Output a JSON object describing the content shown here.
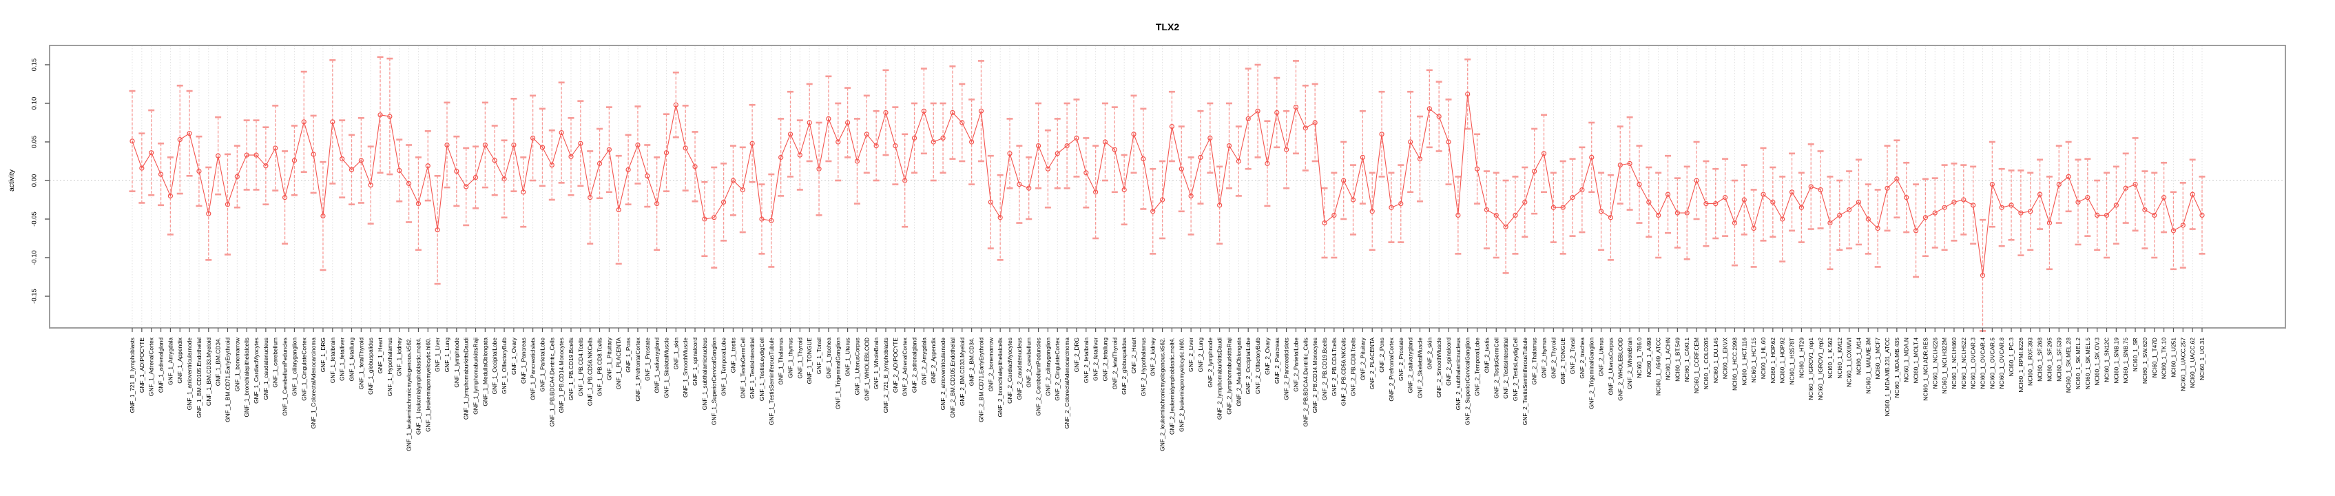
{
  "chart_data": {
    "type": "line",
    "title": "TLX2",
    "ylabel": "activity",
    "xlabel": "",
    "ylim": [
      -0.191,
      0.175
    ],
    "yticks": [
      0.15,
      0.1,
      0.05,
      0.0,
      -0.05,
      -0.1,
      -0.15
    ],
    "ytick_labels": [
      "0.15",
      "0.10",
      "0.05",
      "0.00",
      "-0.05",
      "-0.10",
      "-0.15"
    ],
    "grid": true,
    "zero_line": true,
    "legend": "none",
    "colors": {
      "line": "#f4544e",
      "marker": "#f4544e",
      "error": "#f79a96",
      "grid": "#dedede",
      "zero": "#c8c8c8",
      "box": "#9e9e9e",
      "axis": "#555555",
      "text": "#000000"
    },
    "categories": [
      "GNF_1_721_B_lymphoblasts",
      "GNF_1_ADIPOCYTE",
      "GNF_1_AdrenalCortex",
      "GNF_1_adrenalgland",
      "GNF_1_Amygdala",
      "GNF_1_Appendix",
      "GNF_1_atrioventricularnode",
      "GNF_1_BM.CD105.Endothelial",
      "GNF_1_BM.CD33.Myeloid",
      "GNF_1_BM.CD34.",
      "GNF_1_BM.CD71.EarlyErythroid",
      "GNF_1_bonemarrow",
      "GNF_1_bronchialepithelialcells",
      "GNF_1_CardiacMyocytes",
      "GNF_1_caudatenucleus",
      "GNF_1_cerebellum",
      "GNF_1_CerebellumPeduncles",
      "GNF_1_ciliaryganglion",
      "GNF_1_CingulateCortex",
      "GNF_1_ColorectalAdenocarcinoma",
      "GNF_1_DRG",
      "GNF_1_fetalbrain",
      "GNF_1_fetalliver",
      "GNF_1_fetallung",
      "GNF_1_fetalThyroid",
      "GNF_1_globuspalidus",
      "GNF_1_Heart",
      "GNF_1_Hypothalamus",
      "GNF_1_kidney",
      "GNF_1_leukemiachronicmyelogenous.k562.",
      "GNF_1_leukemialymphoblastic.molt4.",
      "GNF_1_leukemiapromyelocytic.hl60.",
      "GNF_1_Liver",
      "GNF_1_Lung",
      "GNF_1_lymphnode",
      "GNF_1_lymphomaburkittsDaudi",
      "GNF_1_lymphomaburkittsRaji",
      "GNF_1_MedullaOblongata",
      "GNF_1_OccipitalLobe",
      "GNF_1_OlfactoryBulb",
      "GNF_1_Ovary",
      "GNF_1_Pancreas",
      "GNF_1_PancreaticIslets",
      "GNF_1_ParietalLobe",
      "GNF_1_PB.BDCA4.Dentritic_Cells",
      "GNF_1_PB.CD14.Monocytes",
      "GNF_1_PB.CD19.Bcells",
      "GNF_1_PB.CD4.Tcells",
      "GNF_1_PB.CD56.NKCells",
      "GNF_1_PB.CD8.Tcells",
      "GNF_1_Pituitary",
      "GNF_1_PLACENTA",
      "GNF_1_Pons",
      "GNF_1_PrefrontalCortex",
      "GNF_1_Prostate",
      "GNF_1_salivarygland",
      "GNF_1_SkeletalMuscle",
      "GNF_1_skin",
      "GNF_1_SmoothMuscle",
      "GNF_1_spinalcord",
      "GNF_1_subthalamicnucleus",
      "GNF_1_SuperiorCervicalGanglion",
      "GNF_1_TemporalLobe",
      "GNF_1_testis",
      "GNF_1_TestisGermCell",
      "GNF_1_TestisInterstitial",
      "GNF_1_TestisLeydigCell",
      "GNF_1_TestisSeminiferousTubule",
      "GNF_1_Thalamus",
      "GNF_1_thymus",
      "GNF_1_Thyroid",
      "GNF_1_TONGUE",
      "GNF_1_Tonsil",
      "GNF_1_trachea",
      "GNF_1_TrigeminalGanglion",
      "GNF_1_Uterus",
      "GNF_1_UterusCorpus",
      "GNF_1_WHOLEBLOOD",
      "GNF_1_WholeBrain",
      "GNF_2_721_B_lymphoblasts",
      "GNF_2_ADIPOCYTE",
      "GNF_2_AdrenalCortex",
      "GNF_2_adrenalgland",
      "GNF_2_Amygdala",
      "GNF_2_Appendix",
      "GNF_2_atrioventricularnode",
      "GNF_2_BM.CD105.Endothelial",
      "GNF_2_BM.CD33.Myeloid",
      "GNF_2_BM.CD34.",
      "GNF_2_BM.CD71.EarlyErythroid",
      "GNF_2_bonemarrow",
      "GNF_2_bronchialepithelialcells",
      "GNF_2_CardiacMyocytes",
      "GNF_2_caudatenucleus",
      "GNF_2_cerebellum",
      "GNF_2_CerebellumPeduncles",
      "GNF_2_ciliaryganglion",
      "GNF_2_CingulateCortex",
      "GNF_2_ColorectalAdenocarcinoma",
      "GNF_2_DRG",
      "GNF_2_fetalbrain",
      "GNF_2_fetalliver",
      "GNF_2_fetallung",
      "GNF_2_fetalThyroid",
      "GNF_2_globuspalidus",
      "GNF_2_Heart",
      "GNF_2_Hypothalamus",
      "GNF_2_kidney",
      "GNF_2_leukemiachronicmyelogenous.k562.",
      "GNF_2_leukemialymphoblastic.molt4.",
      "GNF_2_leukemiapromyelocytic.hl60.",
      "GNF_2_Liver",
      "GNF_2_Lung",
      "GNF_2_lymphnode",
      "GNF_2_lymphomaburkittsDaudi",
      "GNF_2_lymphomaburkittsRaji",
      "GNF_2_MedullaOblongata",
      "GNF_2_OccipitalLobe",
      "GNF_2_OlfactoryBulb",
      "GNF_2_Ovary",
      "GNF_2_Pancreas",
      "GNF_2_PancreaticIslets",
      "GNF_2_ParietalLobe",
      "GNF_2_PB.BDCA4.Dentritic_Cells",
      "GNF_2_PB.CD14.Monocytes",
      "GNF_2_PB.CD19.Bcells",
      "GNF_2_PB.CD4.Tcells",
      "GNF_2_PB.CD56.NKCells",
      "GNF_2_PB.CD8.Tcells",
      "GNF_2_Pituitary",
      "GNF_2_PLACENTA",
      "GNF_2_Pons",
      "GNF_2_PrefrontalCortex",
      "GNF_2_Prostate",
      "GNF_2_salivarygland",
      "GNF_2_SkeletalMuscle",
      "GNF_2_skin",
      "GNF_2_SmoothMuscle",
      "GNF_2_spinalcord",
      "GNF_2_subthalamicnucleus",
      "GNF_2_SuperiorCervicalGanglion",
      "GNF_2_TemporalLobe",
      "GNF_2_testis",
      "GNF_2_TestisGermCell",
      "GNF_2_TestisInterstitial",
      "GNF_2_TestisLeydigCell",
      "GNF_2_TestisSeminiferousTubule",
      "GNF_2_Thalamus",
      "GNF_2_thymus",
      "GNF_2_Thyroid",
      "GNF_2_TONGUE",
      "GNF_2_Tonsil",
      "GNF_2_trachea",
      "GNF_2_TrigeminalGanglion",
      "GNF_2_Uterus",
      "GNF_2_UterusCorpus",
      "GNF_2_WHOLEBLOOD",
      "GNF_2_WholeBrain",
      "NCI60_1_786.0",
      "NCI60_1_A498",
      "NCI60_1_A549_ATCC",
      "NCI60_1_ACHN",
      "NCI60_1_BT.549",
      "NCI60_1_CAKI.1",
      "NCI60_1_CCRF.CEM",
      "NCI60_1_COLO205",
      "NCI60_1_DU.145",
      "NCI60_1_EKVX",
      "NCI60_1_HCC.2998",
      "NCI60_1_HCT.116",
      "NCI60_1_HCT.15",
      "NCI60_1_HL.60",
      "NCI60_1_HOP.62",
      "NCI60_1_HOP.92",
      "NCI60_1_HS578T",
      "NCI60_1_HT29",
      "NCI60_1_IGROV1_rep1",
      "NCI60_1_IGROV1_rep2",
      "NCI60_1_K.562",
      "NCI60_1_KM12",
      "NCI60_1_LOXIMVI",
      "NCI60_1_M14",
      "NCI60_1_MALME.3M",
      "NCI60_1_MCF7",
      "NCI60_1_MDA.MB.231_ATCC",
      "NCI60_1_MDA.MB.435",
      "NCI60_1_MDA.N",
      "NCI60_1_MOLT.4",
      "NCI60_1_NCI.ADR.RES",
      "NCI60_1_NCI.H226",
      "NCI60_1_NCI.H322M",
      "NCI60_1_NCI.H460",
      "NCI60_1_NCI.H522",
      "NCI60_1_OVCAR.3",
      "NCI60_1_OVCAR.4",
      "NCI60_1_OVCAR.5",
      "NCI60_1_OVCAR.8",
      "NCI60_1_PC.3",
      "NCI60_1_RPMI.8226",
      "NCI60_1_RXF.393",
      "NCI60_1_SF.268",
      "NCI60_1_SF.295",
      "NCI60_1_SF.539",
      "NCI60_1_SK.MEL.28",
      "NCI60_1_SK.MEL.2",
      "NCI60_1_SK.MEL.5",
      "NCI60_1_SK.OV.3",
      "NCI60_1_SN12C",
      "NCI60_1_SNB.19",
      "NCI60_1_SNB.75",
      "NCI60_1_SR",
      "NCI60_1_SW.620",
      "NCI60_1_T47D",
      "NCI60_1_TK.10",
      "NCI60_1_U251",
      "NCI60_1_UACC.257",
      "NCI60_1_UACC.62",
      "NCI60_1_UO.31"
    ],
    "series": [
      {
        "name": "activity",
        "values": [
          0.051,
          0.016,
          0.036,
          0.008,
          -0.02,
          0.053,
          0.061,
          0.012,
          -0.043,
          0.032,
          -0.031,
          0.005,
          0.033,
          0.033,
          0.019,
          0.042,
          -0.022,
          0.026,
          0.076,
          0.034,
          -0.046,
          0.076,
          0.028,
          0.014,
          0.026,
          -0.006,
          0.085,
          0.083,
          0.013,
          -0.004,
          -0.03,
          0.019,
          -0.064,
          0.046,
          0.012,
          -0.008,
          0.004,
          0.046,
          0.026,
          0.002,
          0.046,
          -0.015,
          0.055,
          0.043,
          0.02,
          0.062,
          0.031,
          0.048,
          -0.022,
          0.022,
          0.04,
          -0.038,
          0.014,
          0.046,
          0.006,
          -0.03,
          0.036,
          0.098,
          0.042,
          0.018,
          -0.05,
          -0.048,
          -0.028,
          0.0,
          -0.012,
          0.048,
          -0.05,
          -0.052,
          0.03,
          0.06,
          0.033,
          0.075,
          0.015,
          0.08,
          0.05,
          0.075,
          0.025,
          0.06,
          0.045,
          0.088,
          0.045,
          0.0,
          0.055,
          0.09,
          0.05,
          0.055,
          0.088,
          0.075,
          0.05,
          0.09,
          -0.028,
          -0.048,
          0.035,
          -0.005,
          -0.01,
          0.045,
          0.015,
          0.035,
          0.045,
          0.055,
          0.01,
          -0.015,
          0.05,
          0.04,
          -0.012,
          0.06,
          0.028,
          -0.04,
          -0.025,
          0.07,
          0.015,
          -0.02,
          0.03,
          0.055,
          -0.032,
          0.045,
          0.025,
          0.08,
          0.09,
          0.022,
          0.088,
          0.04,
          0.095,
          0.068,
          0.075,
          -0.055,
          -0.045,
          0.0,
          -0.025,
          0.03,
          -0.04,
          0.06,
          -0.035,
          -0.03,
          0.05,
          0.028,
          0.093,
          0.083,
          0.05,
          -0.045,
          0.112,
          0.015,
          -0.038,
          -0.045,
          -0.06,
          -0.045,
          -0.028,
          0.012,
          0.035,
          -0.035,
          -0.035,
          -0.022,
          -0.012,
          0.03,
          -0.04,
          -0.048,
          0.02,
          0.022,
          -0.005,
          -0.028,
          -0.045,
          -0.018,
          -0.042,
          -0.042,
          0.0,
          -0.03,
          -0.03,
          -0.022,
          -0.055,
          -0.025,
          -0.062,
          -0.018,
          -0.028,
          -0.05,
          -0.015,
          -0.035,
          -0.008,
          -0.012,
          -0.055,
          -0.045,
          -0.038,
          -0.028,
          -0.05,
          -0.062,
          -0.01,
          0.002,
          -0.022,
          -0.065,
          -0.048,
          -0.042,
          -0.035,
          -0.028,
          -0.025,
          -0.032,
          -0.123,
          -0.005,
          -0.035,
          -0.032,
          -0.042,
          -0.04,
          -0.018,
          -0.055,
          -0.005,
          0.005,
          -0.028,
          -0.022,
          -0.045,
          -0.045,
          -0.032,
          -0.01,
          -0.005,
          -0.038,
          -0.045,
          -0.022,
          -0.065,
          -0.058,
          -0.018,
          -0.045
        ],
        "errors": [
          0.065,
          0.045,
          0.055,
          0.04,
          0.05,
          0.07,
          0.055,
          0.045,
          0.06,
          0.05,
          0.065,
          0.04,
          0.045,
          0.045,
          0.05,
          0.055,
          0.06,
          0.045,
          0.065,
          0.05,
          0.07,
          0.08,
          0.05,
          0.045,
          0.055,
          0.05,
          0.075,
          0.075,
          0.04,
          0.05,
          0.06,
          0.045,
          0.07,
          0.055,
          0.045,
          0.05,
          0.04,
          0.055,
          0.045,
          0.05,
          0.06,
          0.045,
          0.055,
          0.05,
          0.045,
          0.065,
          0.05,
          0.055,
          0.06,
          0.045,
          0.055,
          0.07,
          0.045,
          0.05,
          0.04,
          0.06,
          0.05,
          0.042,
          0.055,
          0.045,
          0.048,
          0.065,
          0.05,
          0.045,
          0.055,
          0.05,
          0.045,
          0.06,
          0.05,
          0.055,
          0.045,
          0.05,
          0.06,
          0.055,
          0.05,
          0.045,
          0.055,
          0.05,
          0.045,
          0.055,
          0.05,
          0.06,
          0.045,
          0.055,
          0.05,
          0.045,
          0.06,
          0.05,
          0.055,
          0.065,
          0.06,
          0.055,
          0.045,
          0.05,
          0.04,
          0.055,
          0.05,
          0.045,
          0.055,
          0.05,
          0.045,
          0.06,
          0.05,
          0.055,
          0.045,
          0.05,
          0.065,
          0.055,
          0.05,
          0.045,
          0.055,
          0.05,
          0.06,
          0.045,
          0.05,
          0.055,
          0.045,
          0.065,
          0.06,
          0.055,
          0.045,
          0.05,
          0.06,
          0.055,
          0.05,
          0.045,
          0.055,
          0.05,
          0.045,
          0.06,
          0.05,
          0.055,
          0.045,
          0.05,
          0.065,
          0.055,
          0.05,
          0.045,
          0.055,
          0.05,
          0.045,
          0.045,
          0.05,
          0.055,
          0.06,
          0.05,
          0.045,
          0.055,
          0.05,
          0.045,
          0.06,
          0.05,
          0.055,
          0.045,
          0.05,
          0.055,
          0.05,
          0.06,
          0.05,
          0.045,
          0.055,
          0.05,
          0.045,
          0.06,
          0.05,
          0.055,
          0.045,
          0.05,
          0.055,
          0.045,
          0.05,
          0.06,
          0.045,
          0.055,
          0.05,
          0.045,
          0.055,
          0.05,
          0.06,
          0.045,
          0.05,
          0.055,
          0.045,
          0.05,
          0.055,
          0.05,
          0.045,
          0.06,
          0.05,
          0.045,
          0.055,
          0.05,
          0.045,
          0.05,
          0.072,
          0.055,
          0.05,
          0.045,
          0.055,
          0.05,
          0.045,
          0.06,
          0.05,
          0.045,
          0.055,
          0.05,
          0.045,
          0.055,
          0.05,
          0.045,
          0.06,
          0.05,
          0.055,
          0.045,
          0.05,
          0.055,
          0.045,
          0.05
        ]
      }
    ]
  }
}
